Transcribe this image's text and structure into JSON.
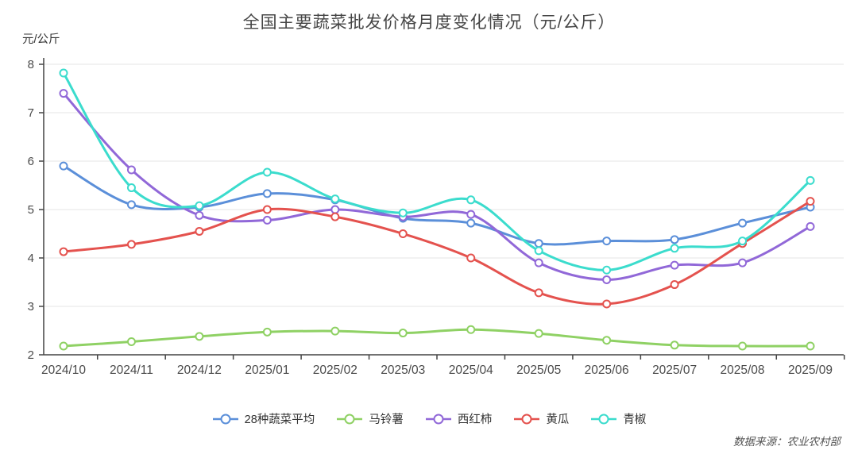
{
  "chart_data": {
    "type": "line",
    "smooth": true,
    "title": "全国主要蔬菜批发价格月度变化情况（元/公斤）",
    "ylabel": "元/公斤",
    "source": "数据来源：农业农村部",
    "grid": true,
    "legend_position": "bottom",
    "ylim": [
      2,
      8
    ],
    "ytick_step": 1,
    "yticks": [
      2,
      3,
      4,
      5,
      6,
      7,
      8
    ],
    "categories": [
      "2024/10",
      "2024/11",
      "2024/12",
      "2025/01",
      "2025/02",
      "2025/03",
      "2025/04",
      "2025/05",
      "2025/06",
      "2025/07",
      "2025/08",
      "2025/09"
    ],
    "series": [
      {
        "name": "28种蔬菜平均",
        "color": "#5B8FD9",
        "values": [
          5.9,
          5.1,
          5.05,
          5.33,
          5.2,
          4.82,
          4.72,
          4.3,
          4.35,
          4.38,
          4.72,
          5.05
        ]
      },
      {
        "name": "马铃薯",
        "color": "#8FD164",
        "values": [
          2.18,
          2.27,
          2.38,
          2.47,
          2.49,
          2.45,
          2.52,
          2.44,
          2.3,
          2.2,
          2.18,
          2.18
        ]
      },
      {
        "name": "西红柿",
        "color": "#9168D8",
        "values": [
          7.4,
          5.82,
          4.88,
          4.78,
          5.0,
          4.85,
          4.9,
          3.9,
          3.55,
          3.85,
          3.9,
          4.65
        ]
      },
      {
        "name": "黄瓜",
        "color": "#E4524E",
        "values": [
          4.13,
          4.28,
          4.55,
          5.0,
          4.85,
          4.5,
          4.0,
          3.28,
          3.05,
          3.45,
          4.3,
          5.17
        ]
      },
      {
        "name": "青椒",
        "color": "#3BDCCD",
        "values": [
          7.82,
          5.45,
          5.08,
          5.77,
          5.22,
          4.93,
          5.2,
          4.15,
          3.75,
          4.2,
          4.35,
          5.6
        ]
      }
    ],
    "axis_color": "#444444",
    "grid_color": "#e6e6e6",
    "label_color": "#4a4a4a"
  }
}
